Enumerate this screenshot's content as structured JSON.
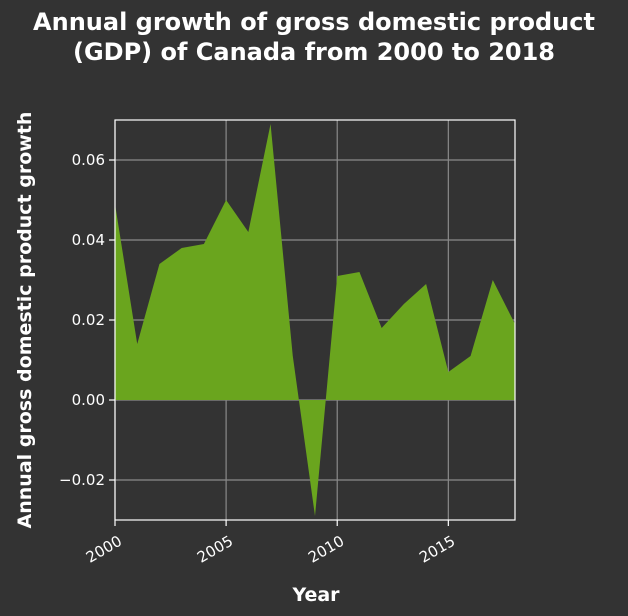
{
  "chart_data": {
    "type": "area",
    "title_lines": [
      "Annual growth of gross domestic product",
      "(GDP) of Canada from 2000 to 2018"
    ],
    "xlabel": "Year",
    "ylabel": "Annual gross domestic product growth",
    "x": [
      2000,
      2001,
      2002,
      2003,
      2004,
      2005,
      2006,
      2007,
      2008,
      2009,
      2010,
      2011,
      2012,
      2013,
      2014,
      2015,
      2016,
      2017,
      2018
    ],
    "series": [
      {
        "values": [
          0.049,
          0.014,
          0.034,
          0.038,
          0.039,
          0.05,
          0.042,
          0.069,
          0.011,
          -0.029,
          0.031,
          0.032,
          0.018,
          0.024,
          0.029,
          0.007,
          0.011,
          0.03,
          0.019
        ]
      }
    ],
    "xlim": [
      2000,
      2018
    ],
    "ylim": [
      -0.03,
      0.07
    ],
    "xticks": [
      2000,
      2005,
      2010,
      2015
    ],
    "xtick_labels": [
      "2000",
      "2005",
      "2010",
      "2015"
    ],
    "yticks": [
      -0.02,
      0.0,
      0.02,
      0.04,
      0.06
    ],
    "ytick_labels": [
      "−0.02",
      "0.00",
      "0.02",
      "0.04",
      "0.06"
    ],
    "grid": true,
    "fill_color": "#6aa51e",
    "background_color": "#333333",
    "grid_color": "#8a8a8a"
  }
}
